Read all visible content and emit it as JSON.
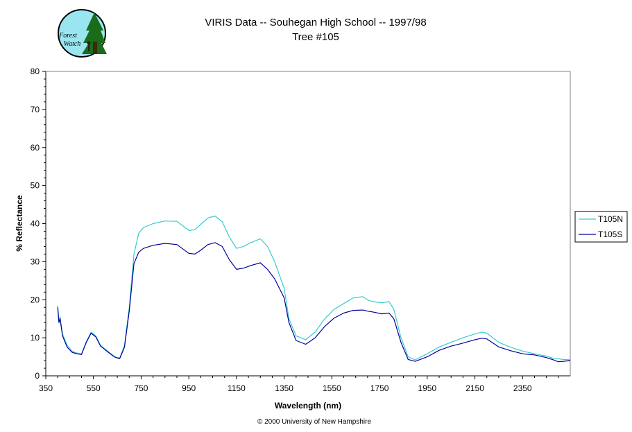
{
  "logo": {
    "line1": "Forest",
    "line2": "Watch"
  },
  "footer": "© 2000 University of New Hampshire",
  "colors": {
    "T105N": "#33CCCC",
    "T105S": "#000099",
    "plot_border": "#808080",
    "logo_fill": "#99E6F0",
    "logo_tree": "#1A6B1A"
  },
  "chart_data": {
    "type": "line",
    "title": "VIRIS Data -- Souhegan High School -- 1997/98",
    "subtitle": "Tree #105",
    "xlabel": "Wavelength (nm)",
    "ylabel": "% Reflectance",
    "xlim": [
      350,
      2550
    ],
    "ylim": [
      0,
      80
    ],
    "x_ticks": [
      350,
      550,
      750,
      950,
      1150,
      1350,
      1550,
      1750,
      1950,
      2150,
      2350
    ],
    "y_ticks": [
      0,
      10,
      20,
      30,
      40,
      50,
      60,
      70,
      80
    ],
    "grid": false,
    "legend": "right",
    "series": [
      {
        "name": "T105N",
        "color": "#33CCCC",
        "x": [
          400,
          405,
          410,
          420,
          440,
          460,
          480,
          500,
          520,
          540,
          560,
          580,
          600,
          620,
          640,
          660,
          680,
          700,
          720,
          740,
          760,
          800,
          850,
          900,
          950,
          975,
          1000,
          1030,
          1060,
          1090,
          1120,
          1150,
          1180,
          1210,
          1250,
          1280,
          1310,
          1350,
          1370,
          1400,
          1440,
          1480,
          1520,
          1560,
          1600,
          1640,
          1680,
          1700,
          1720,
          1760,
          1790,
          1810,
          1840,
          1870,
          1900,
          1950,
          2000,
          2050,
          2100,
          2150,
          2180,
          2200,
          2250,
          2300,
          2350,
          2400,
          2450,
          2480,
          2500,
          2520,
          2550
        ],
        "y": [
          18.5,
          14.5,
          15.5,
          11.0,
          8.0,
          6.5,
          6.0,
          5.8,
          9.0,
          11.5,
          10.5,
          8.0,
          7.0,
          6.0,
          5.0,
          4.7,
          8.0,
          18.0,
          32.0,
          37.5,
          39.0,
          40.0,
          40.7,
          40.6,
          38.2,
          38.4,
          39.8,
          41.5,
          42.0,
          40.5,
          36.5,
          33.5,
          34.0,
          35.0,
          36.0,
          34.0,
          30.0,
          23.0,
          15.0,
          10.5,
          9.5,
          11.5,
          15.0,
          17.5,
          19.0,
          20.5,
          20.8,
          20.0,
          19.5,
          19.2,
          19.5,
          17.5,
          10.0,
          5.0,
          4.2,
          5.8,
          7.6,
          8.8,
          10.0,
          11.0,
          11.5,
          11.2,
          8.8,
          7.5,
          6.5,
          5.8,
          5.2,
          4.6,
          4.5,
          4.3,
          4.2
        ]
      },
      {
        "name": "T105S",
        "color": "#000099",
        "x": [
          400,
          405,
          410,
          420,
          440,
          460,
          480,
          500,
          520,
          540,
          560,
          580,
          600,
          620,
          640,
          660,
          680,
          700,
          720,
          740,
          760,
          800,
          850,
          900,
          950,
          975,
          1000,
          1030,
          1060,
          1090,
          1120,
          1150,
          1180,
          1210,
          1250,
          1280,
          1310,
          1350,
          1370,
          1400,
          1440,
          1480,
          1520,
          1560,
          1600,
          1640,
          1680,
          1700,
          1720,
          1760,
          1790,
          1810,
          1840,
          1870,
          1900,
          1950,
          2000,
          2050,
          2100,
          2150,
          2180,
          2200,
          2250,
          2300,
          2350,
          2400,
          2450,
          2480,
          2500,
          2520,
          2550
        ],
        "y": [
          18.0,
          14.0,
          15.0,
          10.5,
          7.5,
          6.2,
          5.8,
          5.6,
          8.8,
          11.2,
          10.2,
          7.8,
          6.8,
          5.8,
          4.9,
          4.5,
          7.5,
          17.0,
          29.5,
          32.5,
          33.5,
          34.3,
          34.8,
          34.5,
          32.2,
          32.0,
          33.0,
          34.5,
          35.0,
          34.0,
          30.5,
          28.0,
          28.3,
          29.0,
          29.7,
          28.0,
          25.5,
          20.5,
          14.0,
          9.3,
          8.3,
          10.0,
          13.0,
          15.2,
          16.5,
          17.2,
          17.3,
          17.0,
          16.8,
          16.3,
          16.5,
          15.0,
          8.8,
          4.3,
          3.8,
          5.0,
          6.7,
          7.8,
          8.6,
          9.5,
          9.9,
          9.7,
          7.6,
          6.6,
          5.8,
          5.5,
          4.8,
          4.2,
          3.7,
          3.8,
          4.0
        ]
      }
    ]
  }
}
